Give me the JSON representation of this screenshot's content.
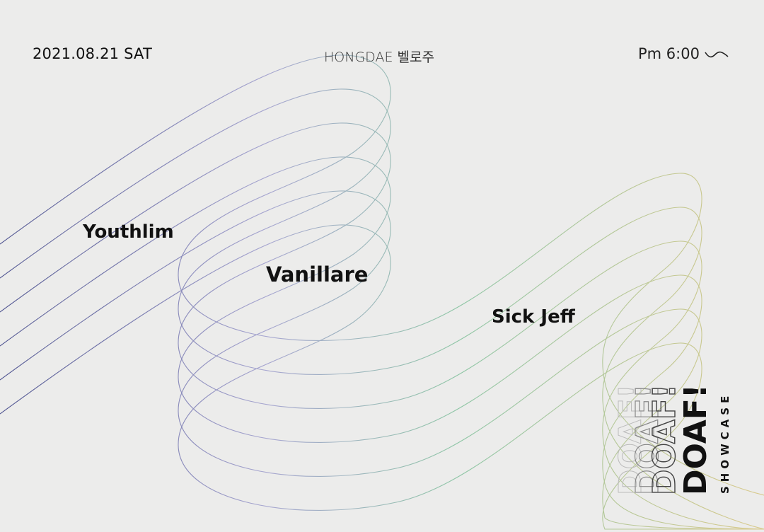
{
  "header": {
    "date": "2021.08.21  SAT",
    "venue": "HONGDAE 벨로주",
    "time": "Pm 6:00",
    "time_suffix_icon": "tilde-wave-icon"
  },
  "artists": [
    "Youthlim",
    "Vanillare",
    "Sick Jeff"
  ],
  "logo": {
    "name": "DOAF!",
    "subtitle": "SHOWCASE"
  },
  "colors": {
    "background": "#ececeb",
    "line_start": "#5a5f9a",
    "line_mid": "#8fc6a6",
    "line_end": "#d9c98a"
  }
}
